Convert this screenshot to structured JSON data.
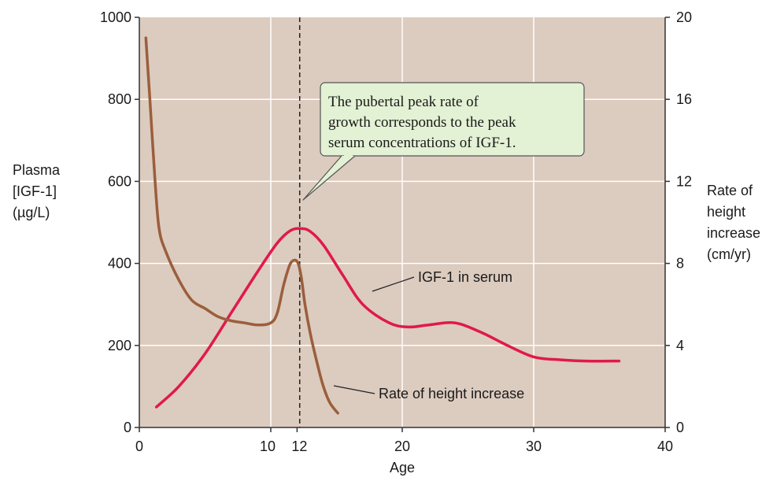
{
  "chart_data": {
    "type": "line",
    "xlabel": "Age",
    "ylabel_left": [
      "Plasma",
      "[IGF-1]",
      "(µg/L)"
    ],
    "ylabel_right": [
      "Rate of",
      "height",
      "increase",
      "(cm/yr)"
    ],
    "xlim": [
      0,
      40
    ],
    "ylim_left": [
      0,
      1000
    ],
    "ylim_right": [
      0,
      20
    ],
    "x_ticks": [
      {
        "value": 0,
        "label": "0"
      },
      {
        "value": 10,
        "label": "10"
      },
      {
        "value": 12,
        "label": "12"
      },
      {
        "value": 20,
        "label": "20"
      },
      {
        "value": 30,
        "label": "30"
      },
      {
        "value": 40,
        "label": "40"
      }
    ],
    "y_ticks_left": [
      "0",
      "200",
      "400",
      "600",
      "800",
      "1000"
    ],
    "y_ticks_right": [
      "0",
      "4",
      "8",
      "12",
      "16",
      "20"
    ],
    "grid": true,
    "reference_line_x": 12.2,
    "series": [
      {
        "name": "IGF-1 in serum",
        "axis": "left",
        "color": "#e0194b",
        "x": [
          1.3,
          3,
          5,
          7,
          9,
          10.5,
          11.5,
          12.3,
          13,
          14,
          15.5,
          17,
          19,
          20.5,
          22,
          24,
          26,
          28,
          30,
          32,
          34,
          36.5
        ],
        "y": [
          50,
          100,
          180,
          280,
          380,
          450,
          480,
          485,
          478,
          445,
          370,
          300,
          255,
          245,
          250,
          255,
          232,
          200,
          172,
          165,
          162,
          162
        ]
      },
      {
        "name": "Rate of height increase",
        "axis": "right",
        "color": "#9b5e3c",
        "x": [
          0.5,
          0.8,
          1.2,
          1.5,
          2,
          3,
          4,
          5,
          6,
          7,
          8,
          9,
          10,
          10.5,
          11,
          11.5,
          12,
          12.3,
          12.6,
          13,
          13.5,
          14,
          14.5,
          15.1
        ],
        "y": [
          19,
          16,
          12,
          9.7,
          8.6,
          7.2,
          6.2,
          5.8,
          5.4,
          5.2,
          5.1,
          5.0,
          5.1,
          5.6,
          7.0,
          8.0,
          8.1,
          7.4,
          6.0,
          4.6,
          3.2,
          2.0,
          1.2,
          0.7
        ]
      }
    ],
    "annotations": [
      {
        "id": "igf1",
        "text": "IGF-1 in serum"
      },
      {
        "id": "height",
        "text": "Rate of height increase"
      }
    ],
    "callout": [
      "The pubertal peak rate of",
      "growth corresponds to the peak",
      "serum concentrations of IGF-1."
    ]
  },
  "colors": {
    "plot_background": "#dccbbf",
    "grid": "#ffffff",
    "axis": "#333333",
    "callout_fill": "#e3f1d4",
    "callout_border": "#555555"
  }
}
